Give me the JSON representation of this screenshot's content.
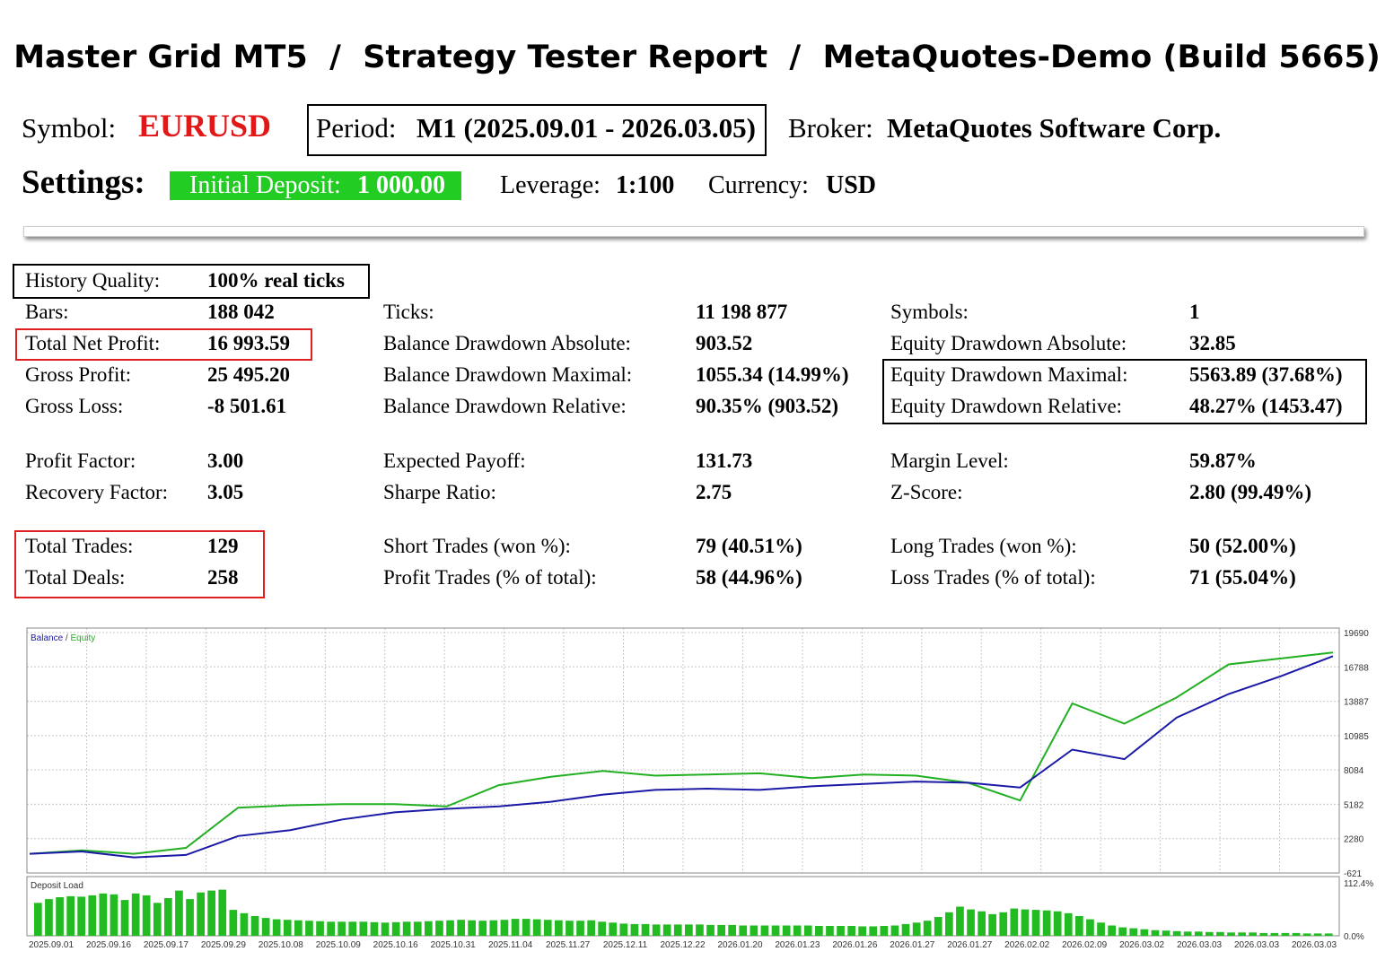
{
  "header": {
    "title": "Master Grid MT5  /  Strategy Tester Report  /  MetaQuotes-Demo (Build 5665)"
  },
  "info": {
    "symbol_label": "Symbol:",
    "symbol_value": "EURUSD",
    "period_label": "Period:",
    "period_value": "M1 (2025.09.01 - 2026.03.05)",
    "broker_label": "Broker:",
    "broker_value": "MetaQuotes Software Corp."
  },
  "settings": {
    "title": "Settings:",
    "deposit_label": "Initial Deposit:",
    "deposit_value": "1 000.00",
    "leverage_label": "Leverage:",
    "leverage_value": "1:100",
    "currency_label": "Currency:",
    "currency_value": "USD"
  },
  "stats": {
    "col1": [
      {
        "label": "History Quality:",
        "value": "100% real ticks"
      },
      {
        "label": "Bars:",
        "value": "188 042"
      },
      {
        "label": "Total Net Profit:",
        "value": "16 993.59"
      },
      {
        "label": "Gross Profit:",
        "value": "25 495.20"
      },
      {
        "label": "Gross Loss:",
        "value": "-8 501.61"
      },
      {
        "label": "Profit Factor:",
        "value": "3.00"
      },
      {
        "label": "Recovery Factor:",
        "value": "3.05"
      },
      {
        "label": "Total Trades:",
        "value": "129"
      },
      {
        "label": "Total Deals:",
        "value": "258"
      }
    ],
    "col2": [
      {
        "label": "Ticks:",
        "value": "11 198 877"
      },
      {
        "label": "Balance Drawdown Absolute:",
        "value": "903.52"
      },
      {
        "label": "Balance Drawdown Maximal:",
        "value": "1055.34 (14.99%)"
      },
      {
        "label": "Balance Drawdown Relative:",
        "value": "90.35% (903.52)"
      },
      {
        "label": "Expected Payoff:",
        "value": "131.73"
      },
      {
        "label": "Sharpe Ratio:",
        "value": "2.75"
      },
      {
        "label": "Short Trades (won %):",
        "value": "79 (40.51%)"
      },
      {
        "label": "Profit Trades (% of total):",
        "value": "58 (44.96%)"
      }
    ],
    "col3": [
      {
        "label": "Symbols:",
        "value": "1"
      },
      {
        "label": "Equity Drawdown Absolute:",
        "value": "32.85"
      },
      {
        "label": "Equity Drawdown Maximal:",
        "value": "5563.89 (37.68%)"
      },
      {
        "label": "Equity Drawdown Relative:",
        "value": "48.27% (1453.47)"
      },
      {
        "label": "Margin Level:",
        "value": "59.87%"
      },
      {
        "label": "Z-Score:",
        "value": "2.80 (99.49%)"
      },
      {
        "label": "Long Trades (won %):",
        "value": "50 (52.00%)"
      },
      {
        "label": "Loss Trades (% of total):",
        "value": "71 (55.04%)"
      }
    ]
  },
  "colors": {
    "balance": "#1a1aa6",
    "equity": "#22b022",
    "deposit_load": "#22bb22",
    "symbol": "#e01818"
  },
  "chart_data": [
    {
      "type": "line",
      "legend": [
        "Balance",
        "Equity"
      ],
      "ylim": [
        -621,
        19690
      ],
      "y_ticks": [
        "19690",
        "16788",
        "13887",
        "10985",
        "8084",
        "5182",
        "2280",
        "-621"
      ],
      "x": [
        0,
        4,
        8,
        12,
        16,
        20,
        24,
        28,
        32,
        36,
        40,
        44,
        48,
        52,
        56,
        60,
        64,
        68,
        72,
        76,
        80,
        84,
        88,
        92,
        96,
        100
      ],
      "series": [
        {
          "name": "Balance",
          "values": [
            1000,
            1200,
            700,
            900,
            2500,
            3000,
            3900,
            4500,
            4800,
            5000,
            5400,
            6000,
            6400,
            6500,
            6400,
            6700,
            6900,
            7100,
            7000,
            6600,
            9800,
            9000,
            12500,
            14500,
            16000,
            17700
          ]
        },
        {
          "name": "Equity",
          "values": [
            1000,
            1300,
            1000,
            1500,
            4900,
            5100,
            5200,
            5200,
            5000,
            6800,
            7500,
            8000,
            7600,
            7700,
            7800,
            7400,
            7700,
            7600,
            7000,
            5500,
            13700,
            12000,
            14200,
            17000,
            17500,
            18000
          ]
        }
      ]
    },
    {
      "type": "bar",
      "legend": [
        "Deposit Load"
      ],
      "ylim": [
        0,
        112.4
      ],
      "y_ticks": [
        "112.4%",
        "0.0%"
      ],
      "x_ticks": [
        "2025.09.01",
        "2025.09.16",
        "2025.09.17",
        "2025.09.29",
        "2025.10.08",
        "2025.10.09",
        "2025.10.16",
        "2025.10.31",
        "2025.11.04",
        "2025.11.27",
        "2025.12.11",
        "2025.12.22",
        "2026.01.20",
        "2026.01.23",
        "2026.01.26",
        "2026.01.27",
        "2026.01.27",
        "2026.02.02",
        "2026.02.09",
        "2026.03.02",
        "2026.03.03",
        "2026.03.03",
        "2026.03.03"
      ],
      "values": [
        70,
        78,
        82,
        84,
        83,
        86,
        90,
        88,
        76,
        90,
        86,
        70,
        80,
        96,
        78,
        92,
        96,
        98,
        55,
        48,
        42,
        38,
        35,
        34,
        33,
        32,
        31,
        30,
        30,
        30,
        30,
        29,
        28,
        29,
        30,
        30,
        31,
        32,
        33,
        34,
        33,
        32,
        33,
        34,
        36,
        36,
        35,
        34,
        33,
        32,
        32,
        33,
        30,
        28,
        26,
        25,
        25,
        24,
        24,
        24,
        24,
        24,
        23,
        23,
        23,
        22,
        22,
        22,
        22,
        22,
        22,
        22,
        21,
        21,
        21,
        21,
        20,
        20,
        21,
        22,
        25,
        28,
        32,
        40,
        50,
        62,
        56,
        52,
        46,
        50,
        58,
        56,
        55,
        54,
        52,
        48,
        42,
        35,
        28,
        22,
        18,
        16,
        14,
        12,
        11,
        10,
        9,
        9,
        8,
        8,
        7,
        7,
        7,
        6,
        6,
        6,
        6,
        5,
        5,
        5
      ]
    }
  ]
}
